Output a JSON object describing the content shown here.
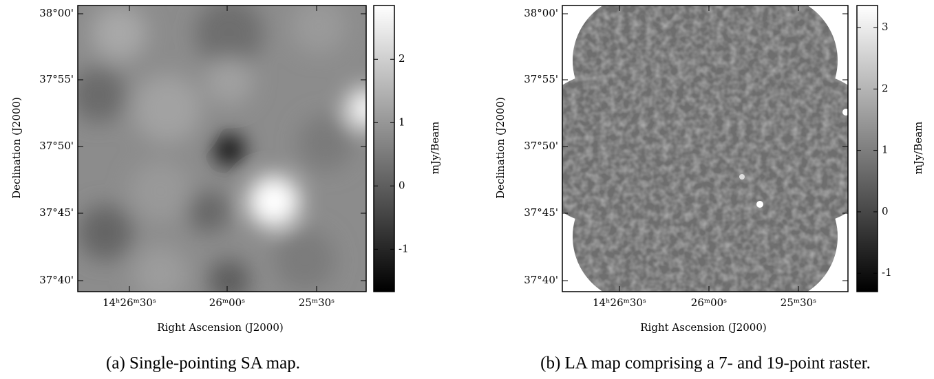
{
  "panels": [
    {
      "y_label": "Declination (J2000)",
      "x_label": "Right Ascension (J2000)",
      "dec_ticks": [
        "38°00'",
        "37°55'",
        "37°50'",
        "37°45'",
        "37°40'"
      ],
      "ra_ticks": [
        "14ʰ26ᵐ30ˢ",
        "26ᵐ00ˢ",
        "25ᵐ30ˢ"
      ],
      "colorbar": {
        "label": "mJy/Beam",
        "lim": [
          -1.67,
          2.85
        ],
        "ticks": [
          -1,
          0,
          1,
          2
        ]
      },
      "caption": "(a) Single-pointing SA map."
    },
    {
      "y_label": "Declination (J2000)",
      "x_label": "Right Ascension (J2000)",
      "dec_ticks": [
        "38°00'",
        "37°55'",
        "37°50'",
        "37°45'",
        "37°40'"
      ],
      "ra_ticks": [
        "14ʰ26ᵐ30ˢ",
        "26ᵐ00ˢ",
        "25ᵐ30ˢ"
      ],
      "colorbar": {
        "label": "mJy/Beam",
        "lim": [
          -1.3,
          3.36
        ],
        "ticks": [
          -1,
          0,
          1,
          2,
          3
        ]
      },
      "caption": "(b) LA map comprising a 7- and 19-point raster."
    }
  ]
}
